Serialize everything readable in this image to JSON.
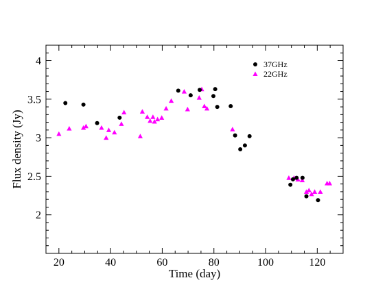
{
  "chart_data": {
    "type": "scatter",
    "title": "",
    "xlabel": "Time (day)",
    "ylabel": "Flux density (Jy)",
    "xlim": [
      15,
      130
    ],
    "ylim": [
      1.5,
      4.2
    ],
    "x_ticks": [
      20,
      40,
      60,
      80,
      100,
      120
    ],
    "y_ticks": [
      2,
      2.5,
      3,
      3.5,
      4
    ],
    "x_tick_labels": [
      "20",
      "40",
      "60",
      "80",
      "100",
      "120"
    ],
    "y_tick_labels": [
      "2",
      "2.5",
      "3",
      "3.5",
      "4"
    ],
    "x_minor_step": 5,
    "y_minor_step": 0.1,
    "grid": false,
    "legend_position": "top-right",
    "series": [
      {
        "name": "37GHz",
        "marker": "circle",
        "color": "#000000",
        "points": [
          [
            22.5,
            3.45
          ],
          [
            29.5,
            3.43
          ],
          [
            34.8,
            3.19
          ],
          [
            43.5,
            3.26
          ],
          [
            66.2,
            3.61
          ],
          [
            71.0,
            3.55
          ],
          [
            74.5,
            3.62
          ],
          [
            79.8,
            3.54
          ],
          [
            80.5,
            3.63
          ],
          [
            81.3,
            3.4
          ],
          [
            86.5,
            3.41
          ],
          [
            88.2,
            3.03
          ],
          [
            90.2,
            2.85
          ],
          [
            92.0,
            2.9
          ],
          [
            93.8,
            3.02
          ],
          [
            109.6,
            2.39
          ],
          [
            110.6,
            2.46
          ],
          [
            112.0,
            2.48
          ],
          [
            114.3,
            2.48
          ],
          [
            115.8,
            2.24
          ],
          [
            120.3,
            2.19
          ]
        ]
      },
      {
        "name": "22GHz",
        "marker": "triangle",
        "color": "#ff00ff",
        "points": [
          [
            20.0,
            3.05
          ],
          [
            24.0,
            3.12
          ],
          [
            29.5,
            3.13
          ],
          [
            30.5,
            3.15
          ],
          [
            36.5,
            3.13
          ],
          [
            38.3,
            3.0
          ],
          [
            39.3,
            3.1
          ],
          [
            41.5,
            3.07
          ],
          [
            44.2,
            3.18
          ],
          [
            45.2,
            3.33
          ],
          [
            51.5,
            3.02
          ],
          [
            52.3,
            3.34
          ],
          [
            54.2,
            3.27
          ],
          [
            55.3,
            3.22
          ],
          [
            56.4,
            3.27
          ],
          [
            57.0,
            3.21
          ],
          [
            58.2,
            3.24
          ],
          [
            59.8,
            3.26
          ],
          [
            61.5,
            3.38
          ],
          [
            63.5,
            3.48
          ],
          [
            68.5,
            3.6
          ],
          [
            69.8,
            3.37
          ],
          [
            74.3,
            3.52
          ],
          [
            75.3,
            3.63
          ],
          [
            76.3,
            3.41
          ],
          [
            77.3,
            3.38
          ],
          [
            87.2,
            3.11
          ],
          [
            109.0,
            2.48
          ],
          [
            111.0,
            2.48
          ],
          [
            112.5,
            2.46
          ],
          [
            114.2,
            2.45
          ],
          [
            115.8,
            2.3
          ],
          [
            116.8,
            2.32
          ],
          [
            117.8,
            2.27
          ],
          [
            119.0,
            2.3
          ],
          [
            121.2,
            2.3
          ],
          [
            123.8,
            2.41
          ],
          [
            124.8,
            2.41
          ]
        ]
      }
    ]
  }
}
